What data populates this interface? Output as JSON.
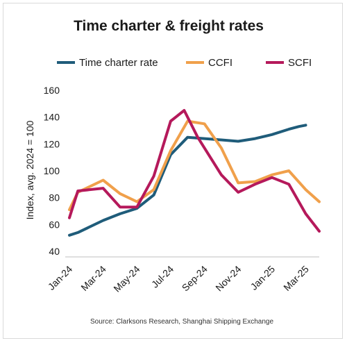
{
  "chart_data": {
    "type": "line",
    "title": "Time charter & freight rates",
    "ylabel": "Index, avg. 2024 = 100",
    "xlabel": "",
    "ylim": [
      40,
      160
    ],
    "yticks": [
      40,
      60,
      80,
      100,
      120,
      140,
      160
    ],
    "grid": false,
    "legend_position": "top",
    "x": [
      "Jan-24",
      "Feb-24",
      "Mar-24",
      "Apr-24",
      "May-24",
      "Jun-24",
      "Jul-24",
      "Aug-24",
      "Sep-24",
      "Oct-24",
      "Nov-24",
      "Dec-24",
      "Jan-25",
      "Feb-25",
      "Mar-25"
    ],
    "x_index": [
      0,
      0.5,
      1,
      1.5,
      2,
      2.5,
      3,
      3.5,
      4,
      4.5,
      5,
      5.5,
      6,
      6.5,
      7
    ],
    "x_tick_labels": [
      "Jan-24",
      "Mar-24",
      "May-24",
      "Jul-24",
      "Sep-24",
      "Nov-24",
      "Jan-25",
      "Mar-25"
    ],
    "series": [
      {
        "name": "Time charter rate",
        "color": "#1f5c7a",
        "values": [
          52,
          54,
          63,
          68,
          72,
          82,
          112,
          125,
          124,
          123,
          122,
          124,
          127,
          131,
          133,
          134
        ],
        "x": [
          0,
          0.25,
          1,
          1.5,
          2,
          2.5,
          3,
          3.5,
          4,
          4.5,
          5,
          5.5,
          6,
          6.5,
          6.8,
          7
        ]
      },
      {
        "name": "CCFI",
        "color": "#f0a04b",
        "values": [
          71,
          84,
          93,
          83,
          77,
          86,
          115,
          137,
          135,
          117,
          91,
          92,
          97,
          100,
          86,
          77
        ],
        "x": [
          0,
          0.25,
          1,
          1.5,
          2,
          2.5,
          3,
          3.5,
          4,
          4.5,
          5,
          5.5,
          6,
          6.5,
          7,
          7.4
        ]
      },
      {
        "name": "SCFI",
        "color": "#b5195b",
        "values": [
          65,
          85,
          87,
          73,
          73,
          96,
          137,
          145,
          125,
          97,
          84,
          90,
          95,
          90,
          68,
          55
        ],
        "x": [
          0,
          0.25,
          1,
          1.5,
          2,
          2.5,
          3,
          3.4,
          3.8,
          4.5,
          5,
          5.5,
          6,
          6.5,
          7,
          7.4
        ]
      }
    ],
    "source": "Source: Clarksons Research, Shanghai Shipping Exchange"
  }
}
